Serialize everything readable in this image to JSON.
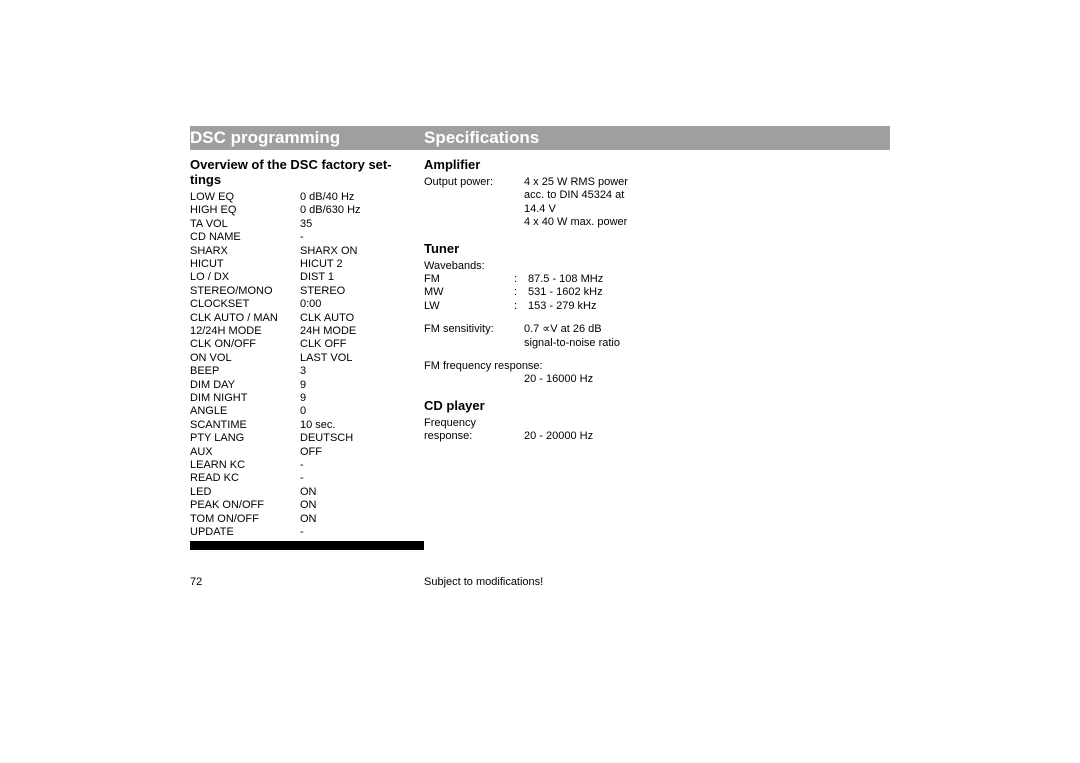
{
  "header": {
    "left": "DSC programming",
    "right": "Specifications"
  },
  "left_column": {
    "heading": "Overview of the DSC factory settings",
    "heading_line1": "Overview of the DSC factory set-",
    "heading_line2": "tings",
    "rows": [
      {
        "label": "LOW EQ",
        "value": "0 dB/40 Hz"
      },
      {
        "label": "HIGH EQ",
        "value": "0 dB/630 Hz"
      },
      {
        "label": "TA VOL",
        "value": "35"
      },
      {
        "label": "CD NAME",
        "value": "-"
      },
      {
        "label": "SHARX",
        "value": "SHARX ON"
      },
      {
        "label": "HICUT",
        "value": "HICUT 2"
      },
      {
        "label": "LO / DX",
        "value": "DIST 1"
      },
      {
        "label": "STEREO/MONO",
        "value": "STEREO"
      },
      {
        "label": "CLOCKSET",
        "value": "0:00"
      },
      {
        "label": "CLK AUTO / MAN",
        "value": "CLK AUTO"
      },
      {
        "label": "12/24H MODE",
        "value": "24H MODE"
      },
      {
        "label": "CLK ON/OFF",
        "value": "CLK OFF"
      },
      {
        "label": "ON VOL",
        "value": "LAST VOL"
      },
      {
        "label": "BEEP",
        "value": "3"
      },
      {
        "label": "DIM DAY",
        "value": "9"
      },
      {
        "label": "DIM NIGHT",
        "value": "9"
      },
      {
        "label": "ANGLE",
        "value": "0"
      },
      {
        "label": "SCANTIME",
        "value": "10 sec."
      },
      {
        "label": "PTY LANG",
        "value": "DEUTSCH"
      },
      {
        "label": "AUX",
        "value": "OFF"
      },
      {
        "label": "LEARN KC",
        "value": "-"
      },
      {
        "label": "READ KC",
        "value": "-"
      },
      {
        "label": "LED",
        "value": "ON"
      },
      {
        "label": "PEAK ON/OFF",
        "value": "ON"
      },
      {
        "label": "TOM ON/OFF",
        "value": "ON"
      },
      {
        "label": "UPDATE",
        "value": "-"
      }
    ]
  },
  "right_column": {
    "amplifier": {
      "heading": "Amplifier",
      "items": [
        {
          "label": "Output power:",
          "values": [
            "4 x 25 W RMS power",
            "acc. to DIN 45324 at",
            "14.4 V",
            "4 x 40 W max. power"
          ]
        }
      ]
    },
    "tuner": {
      "heading": "Tuner",
      "wavebands_label": "Wavebands:",
      "bands": [
        {
          "label": "FM",
          "value": "87.5 - 108 MHz"
        },
        {
          "label": "MW",
          "value": "531 - 1602 kHz"
        },
        {
          "label": "LW",
          "value": "153 - 279 kHz"
        }
      ],
      "sensitivity": {
        "label": "FM sensitivity:",
        "values": [
          "0.7 ∝V at 26 dB",
          "signal-to-noise ratio"
        ]
      },
      "freq_response": {
        "label": "FM frequency response:",
        "value": "20 - 16000 Hz"
      }
    },
    "cd": {
      "heading": "CD player",
      "items": [
        {
          "label_lines": [
            "Frequency",
            "response:"
          ],
          "value": "20 - 20000 Hz"
        }
      ]
    }
  },
  "footer": {
    "page_number": "72",
    "note": "Subject to modifications!"
  }
}
